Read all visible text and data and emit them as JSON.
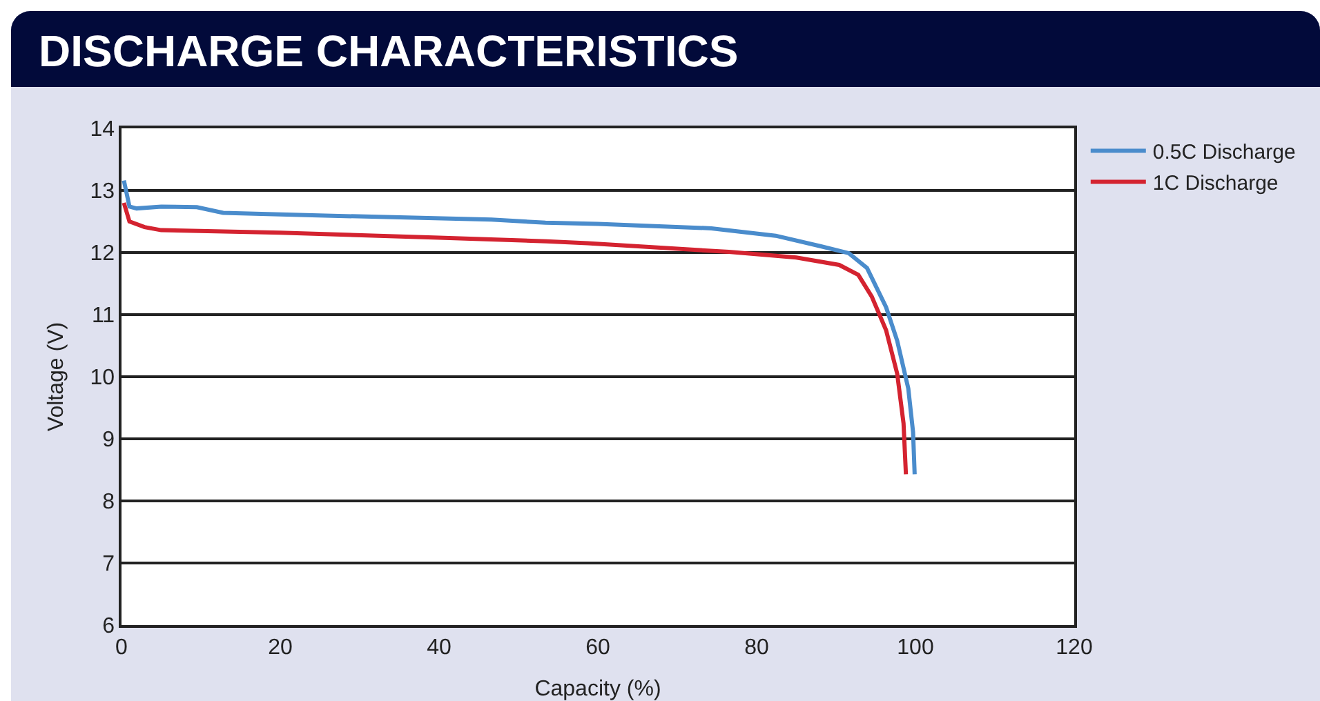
{
  "chart_data": {
    "type": "line",
    "title": "DISCHARGE CHARACTERISTICS",
    "xlabel": "Capacity (%)",
    "ylabel": "Voltage (V)",
    "xlim": [
      0,
      120
    ],
    "xticks": [
      0,
      20,
      40,
      60,
      80,
      100,
      120
    ],
    "ylim": [
      6,
      14
    ],
    "yticks": [
      6,
      7,
      8,
      9,
      10,
      11,
      12,
      13,
      14
    ],
    "grid": "y",
    "legend": "top right",
    "marker": "none",
    "line_style": "solid",
    "series": [
      {
        "name": "0.5C Discharge",
        "color": "#4a8ccc",
        "x": [
          0.3,
          1,
          1.9,
          5,
          9.5,
          12.8,
          24,
          46.6,
          53.4,
          60,
          74.3,
          82.4,
          88.1,
          91.6,
          93.9,
          96.3,
          97.7,
          99.1,
          99.7,
          99.9
        ],
        "values": [
          13.16,
          12.74,
          12.71,
          12.74,
          12.73,
          12.64,
          12.6,
          12.53,
          12.48,
          12.46,
          12.39,
          12.27,
          12.1,
          11.99,
          11.75,
          11.12,
          10.58,
          9.81,
          9.11,
          8.43
        ]
      },
      {
        "name": "1C Discharge",
        "color": "#d42330",
        "x": [
          0.3,
          1,
          2.9,
          5,
          20,
          40,
          53.5,
          58.7,
          76.5,
          85,
          90.4,
          92.8,
          94.5,
          96.3,
          97.7,
          98.5,
          98.8
        ],
        "values": [
          12.8,
          12.5,
          12.41,
          12.36,
          12.32,
          12.24,
          12.18,
          12.15,
          12.01,
          11.92,
          11.8,
          11.64,
          11.29,
          10.75,
          10.05,
          9.25,
          8.43
        ]
      }
    ]
  }
}
